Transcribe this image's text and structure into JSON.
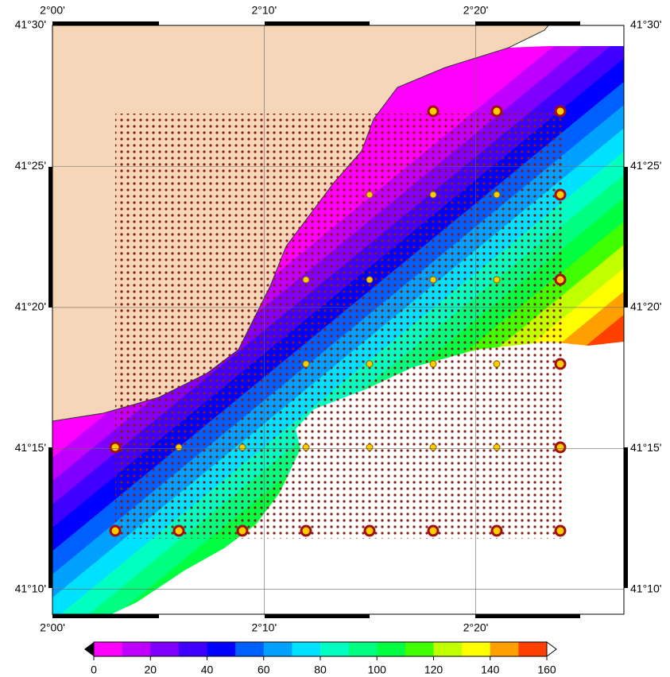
{
  "map": {
    "xlim": [
      2.0,
      2.45
    ],
    "ylim": [
      41.152,
      41.5
    ],
    "lon_ticks": [
      {
        "value": 2.0,
        "label": "2°00'"
      },
      {
        "value": 2.1667,
        "label": "2°10'"
      },
      {
        "value": 2.3333,
        "label": "2°20'"
      }
    ],
    "lat_ticks": [
      {
        "value": 41.5,
        "label": "41°30'"
      },
      {
        "value": 41.4167,
        "label": "41°25'"
      },
      {
        "value": 41.3333,
        "label": "41°20'"
      },
      {
        "value": 41.25,
        "label": "41°15'"
      },
      {
        "value": 41.1667,
        "label": "41°10'"
      }
    ]
  },
  "colorbar": {
    "range": [
      0,
      160
    ],
    "ticks": [
      0,
      20,
      40,
      60,
      80,
      100,
      120,
      140,
      160
    ],
    "colors": [
      "#ff00ff",
      "#c000ff",
      "#8000ff",
      "#4000ff",
      "#0000ff",
      "#0060ff",
      "#00a0ff",
      "#00e0ff",
      "#00ffc0",
      "#00ff80",
      "#00ff40",
      "#40ff00",
      "#c0ff00",
      "#ffff00",
      "#ffa000",
      "#ff4000"
    ]
  }
}
